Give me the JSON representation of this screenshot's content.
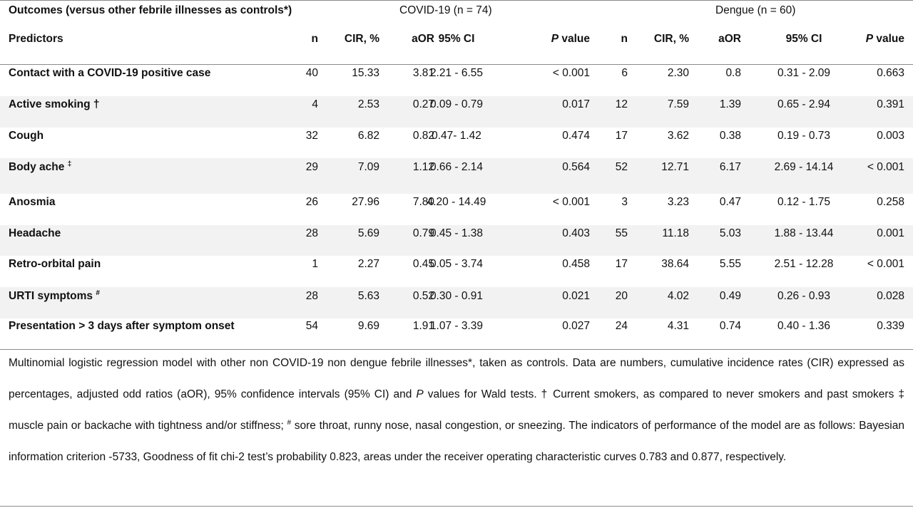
{
  "outcomes_label": "Outcomes  (versus other febrile illnesses as controls*)",
  "groups": {
    "covid": "COVID-19 (n = 74)",
    "dengue": "Dengue (n = 60)"
  },
  "header": {
    "predictors": "Predictors",
    "n": "n",
    "cir": "CIR, %",
    "aor": "aOR",
    "ci": "95% CI",
    "p_italic": "P",
    "p_rest": " value"
  },
  "rows": [
    {
      "predictor": "Contact with a COVID-19 positive case",
      "sup": "",
      "c_n": "40",
      "c_cir": "15.33",
      "c_aor": "3.81",
      "c_ci": "2.21 - 6.55",
      "c_p": "< 0.001",
      "d_n": "6",
      "d_cir": "2.30",
      "d_aor": "0.8",
      "d_ci": "0.31 - 2.09",
      "d_p": "0.663"
    },
    {
      "predictor": "Active smoking †",
      "sup": "",
      "c_n": "4",
      "c_cir": "2.53",
      "c_aor": "0.27",
      "c_ci": "0.09 - 0.79",
      "c_p": "0.017",
      "d_n": "12",
      "d_cir": "7.59",
      "d_aor": "1.39",
      "d_ci": "0.65 - 2.94",
      "d_p": "0.391"
    },
    {
      "predictor": "Cough",
      "sup": "",
      "c_n": "32",
      "c_cir": "6.82",
      "c_aor": "0.82",
      "c_ci": "0.47- 1.42",
      "c_p": "0.474",
      "d_n": "17",
      "d_cir": "3.62",
      "d_aor": "0.38",
      "d_ci": "0.19 - 0.73",
      "d_p": "0.003"
    },
    {
      "predictor": "Body ache ",
      "sup": "‡",
      "c_n": "29",
      "c_cir": "7.09",
      "c_aor": "1.12",
      "c_ci": "0.66 - 2.14",
      "c_p": "0.564",
      "d_n": "52",
      "d_cir": "12.71",
      "d_aor": "6.17",
      "d_ci": "2.69 - 14.14",
      "d_p": "< 0.001"
    },
    {
      "predictor": "Anosmia",
      "sup": "",
      "c_n": "26",
      "c_cir": "27.96",
      "c_aor": "7.80",
      "c_ci": "4.20 - 14.49",
      "c_p": "< 0.001",
      "d_n": "3",
      "d_cir": "3.23",
      "d_aor": "0.47",
      "d_ci": "0.12 - 1.75",
      "d_p": "0.258"
    },
    {
      "predictor": "Headache",
      "sup": "",
      "c_n": "28",
      "c_cir": "5.69",
      "c_aor": "0.79",
      "c_ci": "0.45 - 1.38",
      "c_p": "0.403",
      "d_n": "55",
      "d_cir": "11.18",
      "d_aor": "5.03",
      "d_ci": "1.88 - 13.44",
      "d_p": "0.001"
    },
    {
      "predictor": "Retro-orbital pain",
      "sup": "",
      "c_n": "1",
      "c_cir": "2.27",
      "c_aor": "0.45",
      "c_ci": "0.05 - 3.74",
      "c_p": "0.458",
      "d_n": "17",
      "d_cir": "38.64",
      "d_aor": "5.55",
      "d_ci": "2.51 - 12.28",
      "d_p": "< 0.001"
    },
    {
      "predictor": "URTI symptoms ",
      "sup": "#",
      "c_n": "28",
      "c_cir": "5.63",
      "c_aor": "0.52",
      "c_ci": "0.30 - 0.91",
      "c_p": "0.021",
      "d_n": "20",
      "d_cir": "4.02",
      "d_aor": "0.49",
      "d_ci": "0.26 - 0.93",
      "d_p": "0.028"
    },
    {
      "predictor": "Presentation > 3 days after symptom onset",
      "sup": "",
      "c_n": "54",
      "c_cir": "9.69",
      "c_aor": "1.91",
      "c_ci": "1.07 - 3.39",
      "c_p": "0.027",
      "d_n": "24",
      "d_cir": "4.31",
      "d_aor": "0.74",
      "d_ci": "0.40 - 1.36",
      "d_p": "0.339"
    }
  ],
  "footnote": {
    "part1": "Multinomial logistic regression model with other non COVID-19 non dengue febrile illnesses*, taken as controls. Data are numbers, cumulative incidence rates (CIR) expressed as percentages, adjusted odd ratios (aOR), 95% confidence intervals (95% CI) and ",
    "p_italic": "P",
    "part2": " values for Wald tests. † Current smokers, as compared to never smokers and past smokers ‡ muscle pain or backache with tightness and/or stiffness; ",
    "sup": "#",
    "part3": " sore throat, runny nose, nasal congestion, or sneezing. The indicators of performance of the model are as follows: Bayesian information criterion -5733, Goodness of fit chi-2 test’s probability 0.823, areas under the receiver operating characteristic curves 0.783 and 0.877, respectively."
  }
}
